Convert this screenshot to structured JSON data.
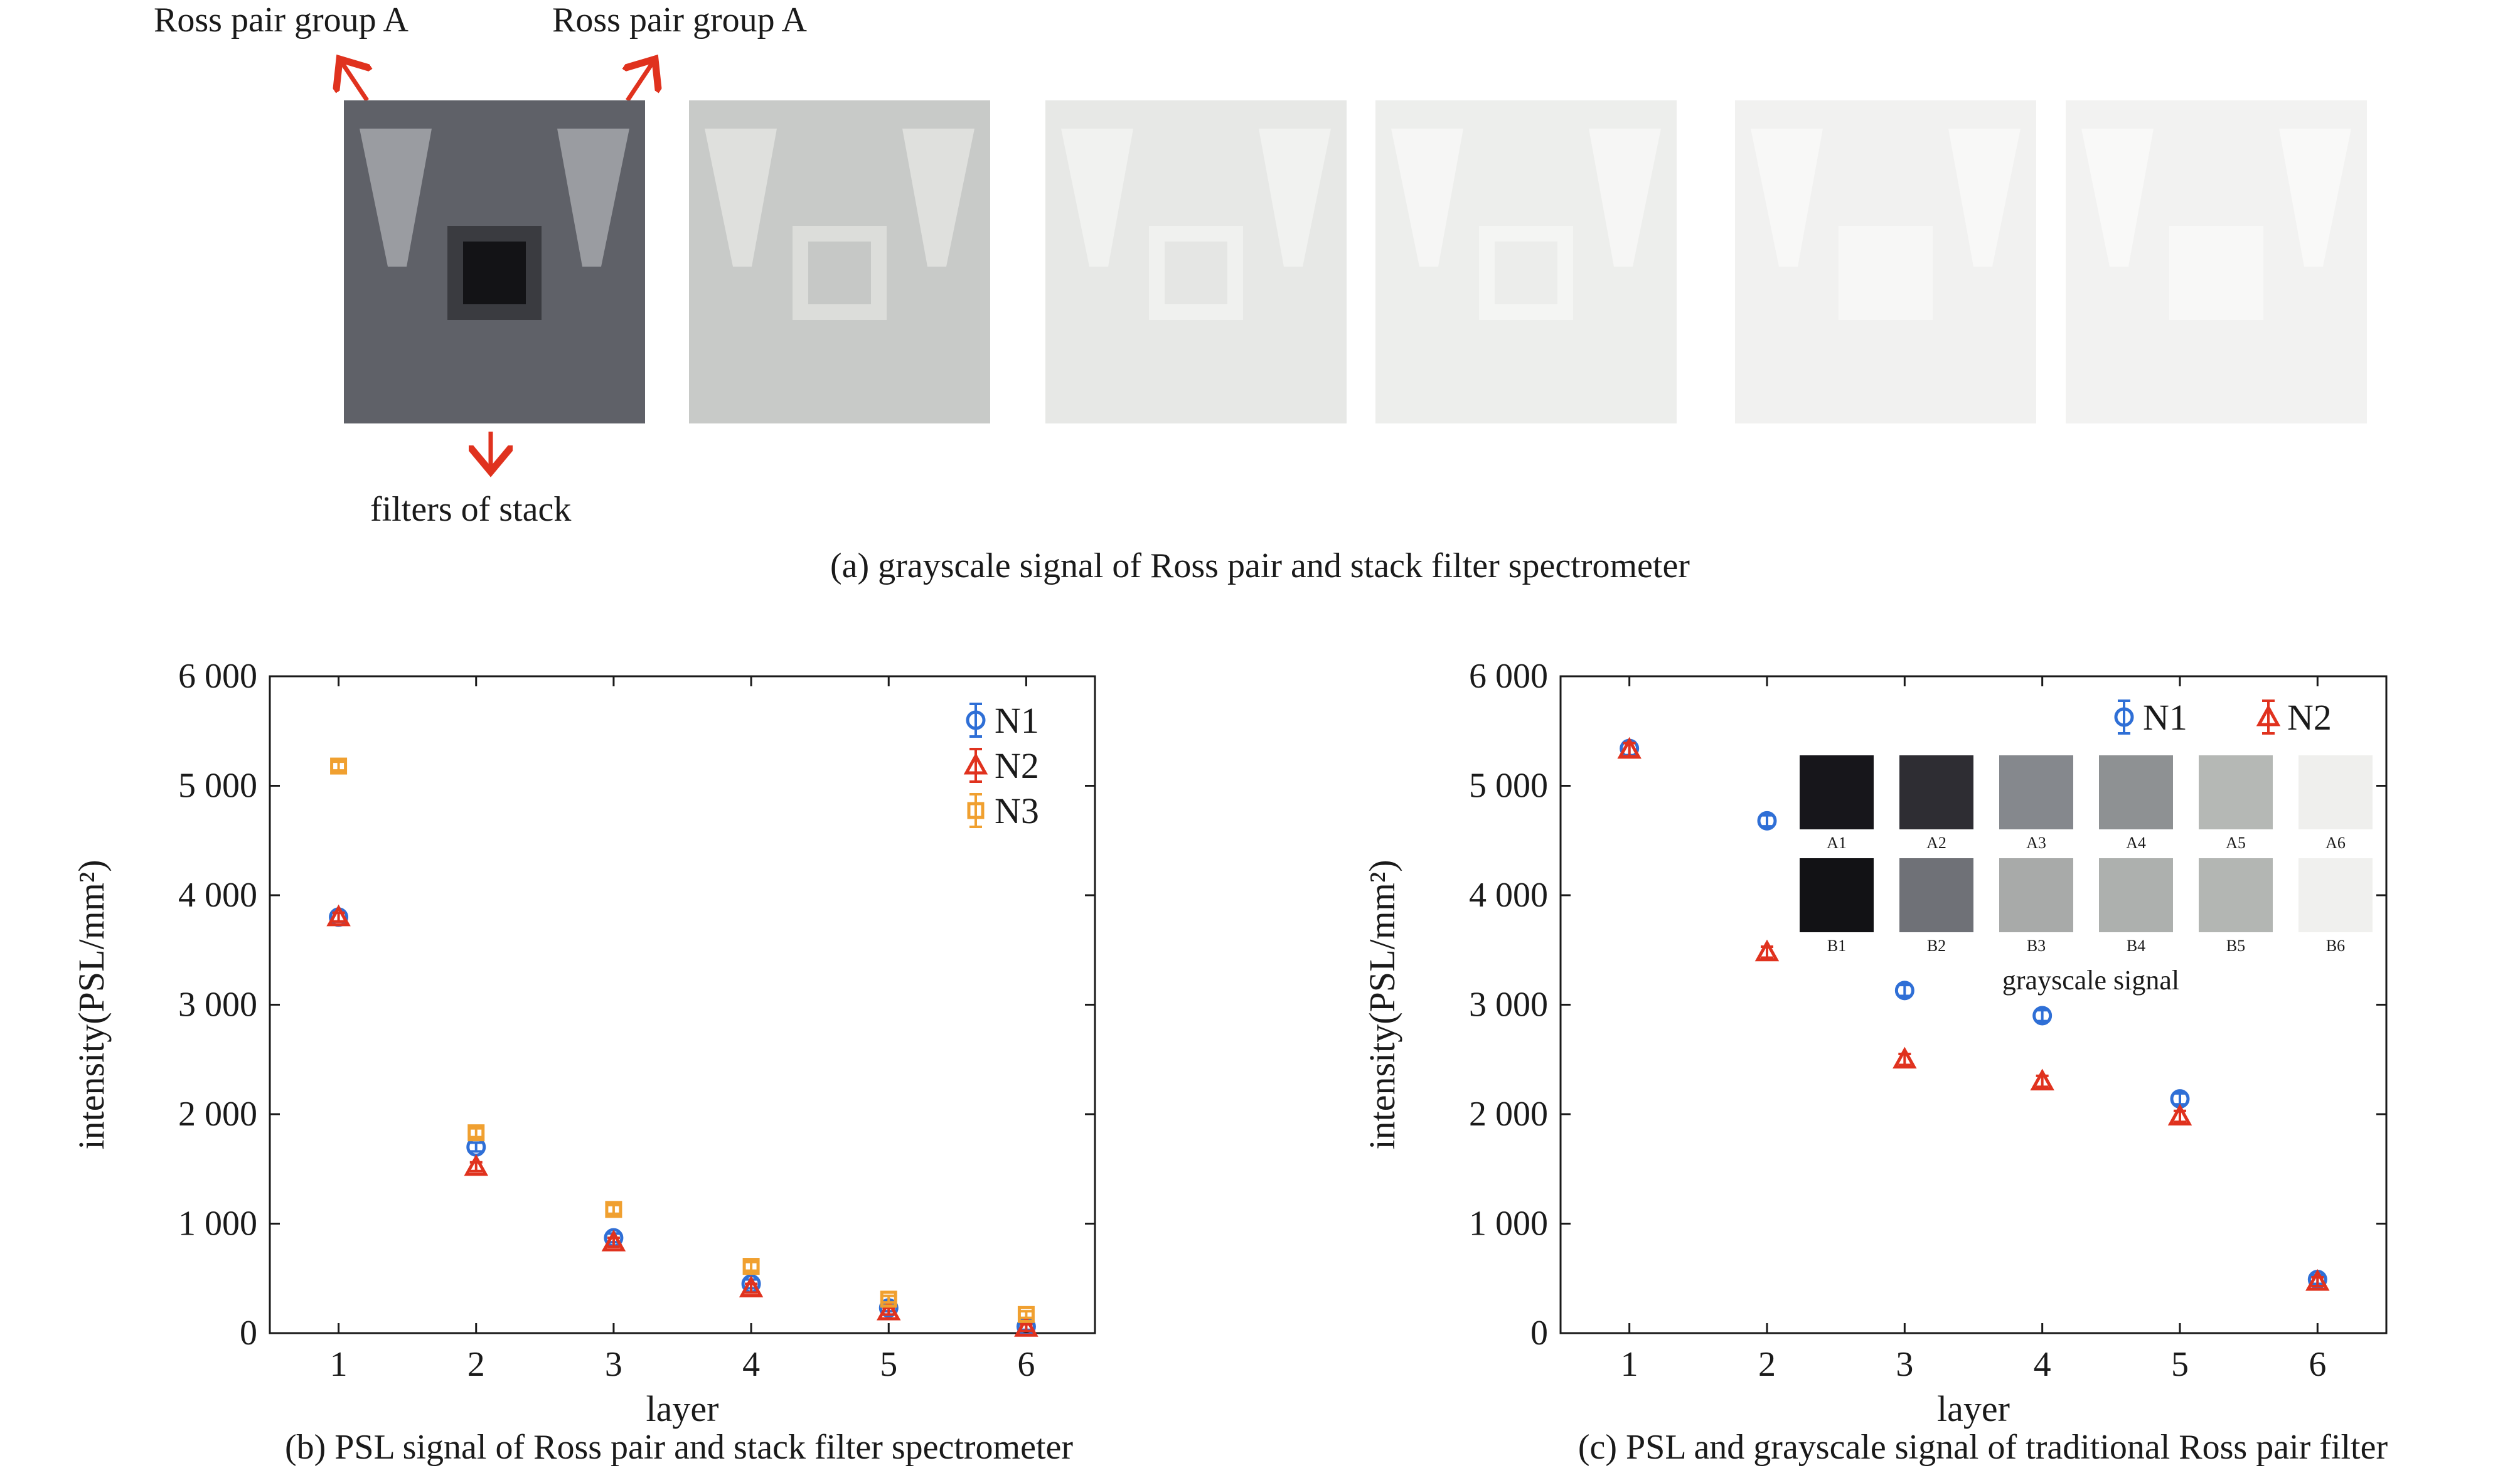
{
  "figure_a": {
    "label_top_left": "Ross pair group A",
    "label_top_right": "Ross pair group A",
    "label_bottom": "filters of stack",
    "caption": "(a) grayscale signal of Ross pair and stack filter spectrometer",
    "plates": [
      {
        "bg": "#5f6168",
        "tri": "#9a9ca1",
        "sq_outer": "#3a3b40",
        "sq_inner": "#131316"
      },
      {
        "bg": "#c8cac8",
        "tri": "#dfe0dd",
        "sq_outer": "#dcddda",
        "sq_inner": "#c6c8c6"
      },
      {
        "bg": "#e7e8e6",
        "tri": "#f1f2f0",
        "sq_outer": "#f0f1ef",
        "sq_inner": "#e5e6e4"
      },
      {
        "bg": "#edeeec",
        "tri": "#f6f6f5",
        "sq_outer": "#f4f5f3",
        "sq_inner": "#ecedeb"
      },
      {
        "bg": "#f1f1f0",
        "tri": "#f8f8f7",
        "sq_outer": "#f7f7f6",
        "sq_inner": "#f7f7f6"
      },
      {
        "bg": "#f2f2f1",
        "tri": "#f9f9f8",
        "sq_outer": "#f8f8f7",
        "sq_inner": "#f8f8f7"
      }
    ]
  },
  "chart_data": [
    {
      "type": "scatter",
      "caption": "(b) PSL signal of Ross pair and stack filter spectrometer",
      "xlabel": "layer",
      "ylabel": "intensity(PSL/mm²)",
      "xlim": [
        0.5,
        6.5
      ],
      "ylim": [
        0,
        6000
      ],
      "xticks": [
        1,
        2,
        3,
        4,
        5,
        6
      ],
      "yticks": [
        0,
        1000,
        2000,
        3000,
        4000,
        5000,
        6000
      ],
      "ytick_labels": [
        "0",
        "1 000",
        "2 000",
        "3 000",
        "4 000",
        "5 000",
        "6 000"
      ],
      "legend": "top-right",
      "series": [
        {
          "name": "N1",
          "marker": "circle",
          "color": "#2f6fd6",
          "x": [
            1,
            2,
            3,
            4,
            5,
            6
          ],
          "y": [
            3800,
            1700,
            870,
            450,
            230,
            60
          ],
          "err": [
            40,
            40,
            40,
            40,
            30,
            30
          ]
        },
        {
          "name": "N2",
          "marker": "triangle",
          "color": "#e0321e",
          "x": [
            1,
            2,
            3,
            4,
            5,
            6
          ],
          "y": [
            3800,
            1520,
            830,
            410,
            200,
            50
          ],
          "err": [
            40,
            40,
            40,
            40,
            30,
            30
          ]
        },
        {
          "name": "N3",
          "marker": "square",
          "color": "#f0a030",
          "x": [
            1,
            2,
            3,
            4,
            5,
            6
          ],
          "y": [
            5180,
            1830,
            1130,
            610,
            310,
            170
          ],
          "err": [
            40,
            40,
            40,
            40,
            30,
            30
          ]
        }
      ]
    },
    {
      "type": "scatter",
      "caption": "(c) PSL and grayscale signal of traditional Ross pair filter",
      "xlabel": "layer",
      "ylabel": "intensity(PSL/mm²)",
      "xlim": [
        0.5,
        6.5
      ],
      "ylim": [
        0,
        6000
      ],
      "xticks": [
        1,
        2,
        3,
        4,
        5,
        6
      ],
      "yticks": [
        0,
        1000,
        2000,
        3000,
        4000,
        5000,
        6000
      ],
      "ytick_labels": [
        "0",
        "1 000",
        "2 000",
        "3 000",
        "4 000",
        "5 000",
        "6 000"
      ],
      "legend": "top-right",
      "series": [
        {
          "name": "N1",
          "marker": "circle",
          "color": "#2f6fd6",
          "x": [
            1,
            2,
            3,
            4,
            5,
            6
          ],
          "y": [
            5340,
            4680,
            3130,
            2900,
            2140,
            490
          ],
          "err": [
            60,
            50,
            50,
            50,
            50,
            40
          ]
        },
        {
          "name": "N2",
          "marker": "triangle",
          "color": "#e0321e",
          "x": [
            1,
            2,
            3,
            4,
            5,
            6
          ],
          "y": [
            5330,
            3480,
            2500,
            2300,
            1980,
            470
          ],
          "err": [
            60,
            50,
            50,
            50,
            50,
            40
          ]
        }
      ],
      "inset": {
        "title": "grayscale signal",
        "rows": [
          [
            {
              "label": "A1",
              "color": "#17161b"
            },
            {
              "label": "A2",
              "color": "#2e2d33"
            },
            {
              "label": "A3",
              "color": "#85888d"
            },
            {
              "label": "A4",
              "color": "#8e9193"
            },
            {
              "label": "A5",
              "color": "#b5b8b5"
            },
            {
              "label": "A6",
              "color": "#efefed"
            }
          ],
          [
            {
              "label": "B1",
              "color": "#121215"
            },
            {
              "label": "B2",
              "color": "#6f7177"
            },
            {
              "label": "B3",
              "color": "#a8aaa9"
            },
            {
              "label": "B4",
              "color": "#adb0ae"
            },
            {
              "label": "B5",
              "color": "#b3b6b3"
            },
            {
              "label": "B6",
              "color": "#f0f0ee"
            }
          ]
        ]
      }
    }
  ]
}
